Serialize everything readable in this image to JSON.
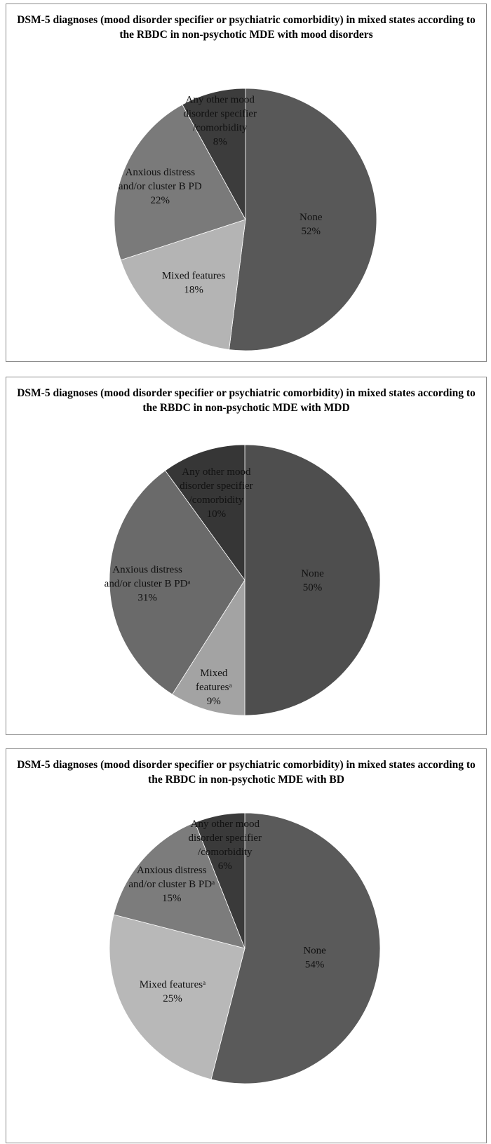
{
  "chart_data": [
    {
      "type": "pie",
      "title": "DSM-5 diagnoses (mood disorder specifier or psychiatric comorbidity) in mixed states according to the RBDC in non-psychotic MDE with mood disorders",
      "slices": [
        {
          "label_lines": [
            "None"
          ],
          "percent_label": "52%",
          "value": 52,
          "color": "#585858",
          "text_color": "#111111"
        },
        {
          "label_lines": [
            "Mixed features"
          ],
          "percent_label": "18%",
          "value": 18,
          "color": "#b4b4b4",
          "text_color": "#111111"
        },
        {
          "label_lines": [
            "Anxious distress",
            "and/or cluster B PD"
          ],
          "percent_label": "22%",
          "value": 22,
          "color": "#7a7a7a",
          "text_color": "#111111"
        },
        {
          "label_lines": [
            "Any other mood",
            "disorder specifier",
            "/comorbidity"
          ],
          "percent_label": "8%",
          "value": 8,
          "color": "#3c3c3c",
          "text_color": "#111111"
        }
      ]
    },
    {
      "type": "pie",
      "title": "DSM-5 diagnoses (mood disorder specifier or psychiatric comorbidity) in mixed states according to the RBDC in non-psychotic MDE with MDD",
      "slices": [
        {
          "label_lines": [
            "None"
          ],
          "percent_label": "50%",
          "value": 50,
          "color": "#4e4e4e",
          "text_color": "#111111"
        },
        {
          "label_lines": [
            "Mixed",
            "featuresᵃ"
          ],
          "percent_label": "9%",
          "value": 9,
          "color": "#a3a3a3",
          "text_color": "#111111"
        },
        {
          "label_lines": [
            "Anxious distress",
            "and/or cluster B PDᵃ"
          ],
          "percent_label": "31%",
          "value": 31,
          "color": "#6a6a6a",
          "text_color": "#111111"
        },
        {
          "label_lines": [
            "Any other mood",
            "disorder specifier",
            "/comorbidity"
          ],
          "percent_label": "10%",
          "value": 10,
          "color": "#363636",
          "text_color": "#111111"
        }
      ]
    },
    {
      "type": "pie",
      "title": "DSM-5 diagnoses (mood disorder specifier or psychiatric comorbidity) in mixed states according to the RBDC in non-psychotic MDE with BD",
      "slices": [
        {
          "label_lines": [
            "None"
          ],
          "percent_label": "54%",
          "value": 54,
          "color": "#5a5a5a",
          "text_color": "#111111"
        },
        {
          "label_lines": [
            "Mixed featuresᵃ"
          ],
          "percent_label": "25%",
          "value": 25,
          "color": "#b8b8b8",
          "text_color": "#111111"
        },
        {
          "label_lines": [
            "Anxious distress",
            "and/or cluster B PDᵃ"
          ],
          "percent_label": "15%",
          "value": 15,
          "color": "#7c7c7c",
          "text_color": "#111111"
        },
        {
          "label_lines": [
            "Any other mood",
            "disorder specifier",
            "/comorbidity"
          ],
          "percent_label": "6%",
          "value": 6,
          "color": "#3a3a3a",
          "text_color": "#111111"
        }
      ]
    }
  ]
}
